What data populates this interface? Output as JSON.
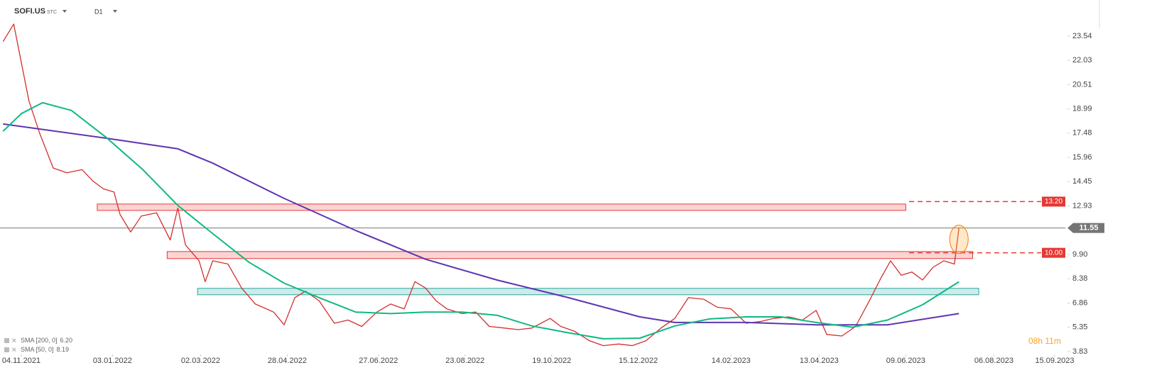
{
  "header": {
    "symbol": "SOFI.US",
    "market": "STC",
    "interval": "D1"
  },
  "chart_data": {
    "type": "line",
    "xlim": [
      "21.10.2021",
      "22.09.2023"
    ],
    "ylim": [
      3.65,
      25.8
    ],
    "xticks": [
      "04.11.2021",
      "03.01.2022",
      "02.03.2022",
      "28.04.2022",
      "27.06.2022",
      "23.08.2022",
      "19.10.2022",
      "15.12.2022",
      "14.02.2023",
      "13.04.2023",
      "09.06.2023",
      "06.08.2023",
      "15.09.2023"
    ],
    "yticks": [
      3.83,
      5.35,
      6.86,
      8.38,
      {
        "value": 9.9,
        "label": "9.90"
      },
      12.93,
      14.45,
      15.96,
      17.48,
      18.99,
      20.51,
      22.03,
      23.54
    ],
    "series": [
      {
        "color": "#d32f2f",
        "x": [
          "23.10.2021",
          "30.10.2021",
          "09.11.2021",
          "16.11.2021",
          "25.11.2021",
          "04.12.2021",
          "14.12.2021",
          "21.12.2021",
          "28.12.2021",
          "04.01.2022",
          "08.01.2022",
          "15.01.2022",
          "22.01.2022",
          "01.02.2022",
          "10.02.2022",
          "15.02.2022",
          "20.02.2022",
          "01.03.2022",
          "05.03.2022",
          "10.03.2022",
          "20.03.2022",
          "29.03.2022",
          "07.04.2022",
          "19.04.2022",
          "26.04.2022",
          "03.05.2022",
          "10.05.2022",
          "19.05.2022",
          "29.05.2022",
          "07.06.2022",
          "16.06.2022",
          "26.06.2022",
          "05.07.2022",
          "14.07.2022",
          "21.07.2022",
          "28.07.2022",
          "04.08.2022",
          "11.08.2022",
          "21.08.2022",
          "30.08.2022",
          "08.09.2022",
          "18.09.2022",
          "27.09.2022",
          "06.10.2022",
          "18.10.2022",
          "25.10.2022",
          "03.11.2022",
          "13.11.2022",
          "22.11.2022",
          "02.12.2022",
          "11.12.2022",
          "20.12.2022",
          "30.12.2022",
          "08.01.2023",
          "17.01.2023",
          "27.01.2023",
          "05.02.2023",
          "14.02.2023",
          "24.02.2023",
          "05.03.2023",
          "14.03.2023",
          "24.03.2023",
          "02.04.2023",
          "11.04.2023",
          "18.04.2023",
          "28.04.2023",
          "07.05.2023",
          "16.05.2023",
          "23.05.2023",
          "30.05.2023",
          "06.06.2023",
          "13.06.2023",
          "20.06.2023",
          "27.06.2023",
          "04.07.2023",
          "11.07.2023",
          "14.07.2023"
        ],
        "values": [
          23.2,
          24.3,
          19.5,
          17.5,
          15.3,
          15.0,
          15.2,
          14.5,
          14.0,
          13.8,
          12.4,
          11.3,
          12.3,
          12.5,
          10.8,
          12.8,
          10.5,
          9.5,
          8.2,
          9.5,
          9.3,
          7.8,
          6.8,
          6.3,
          5.5,
          7.2,
          7.6,
          7.0,
          5.6,
          5.8,
          5.4,
          6.3,
          6.8,
          6.5,
          8.2,
          7.8,
          7.0,
          6.5,
          6.2,
          6.3,
          5.4,
          5.3,
          5.2,
          5.3,
          5.9,
          5.4,
          5.1,
          4.5,
          4.2,
          4.3,
          4.2,
          4.5,
          5.3,
          5.9,
          7.2,
          7.1,
          6.6,
          6.5,
          5.6,
          5.7,
          5.9,
          6.0,
          5.8,
          6.4,
          4.9,
          4.8,
          5.4,
          7.0,
          8.3,
          9.5,
          8.6,
          8.8,
          8.3,
          9.1,
          9.5,
          9.3,
          11.55
        ]
      },
      {
        "name": "SMA [200, 0]",
        "legend_value": "6.20",
        "color": "#5e35b1",
        "x": [
          "23.10.2021",
          "30.12.2021",
          "15.02.2022",
          "10.03.2022",
          "26.04.2022",
          "12.06.2022",
          "28.07.2022",
          "13.09.2022",
          "30.10.2022",
          "16.12.2022",
          "08.01.2023",
          "24.02.2023",
          "11.04.2023",
          "28.05.2023",
          "14.07.2023"
        ],
        "values": [
          18.05,
          17.16,
          16.5,
          15.6,
          13.4,
          11.4,
          9.6,
          8.3,
          7.2,
          6.0,
          5.65,
          5.65,
          5.5,
          5.5,
          6.2
        ]
      },
      {
        "name": "SMA [50, 0]",
        "legend_value": "8.19",
        "color": "#10b981",
        "x": [
          "23.10.2021",
          "04.11.2021",
          "18.11.2021",
          "07.12.2021",
          "30.12.2021",
          "23.01.2022",
          "15.02.2022",
          "10.03.2022",
          "03.04.2022",
          "26.04.2022",
          "19.05.2022",
          "12.06.2022",
          "05.07.2022",
          "28.07.2022",
          "21.08.2022",
          "13.09.2022",
          "06.10.2022",
          "30.10.2022",
          "22.11.2022",
          "16.12.2022",
          "08.01.2023",
          "31.01.2023",
          "24.02.2023",
          "19.03.2023",
          "11.04.2023",
          "05.05.2023",
          "28.05.2023",
          "20.06.2023",
          "14.07.2023"
        ],
        "values": [
          17.6,
          18.7,
          19.38,
          18.9,
          17.2,
          15.2,
          12.96,
          11.2,
          9.4,
          8.1,
          7.2,
          6.3,
          6.2,
          6.3,
          6.3,
          6.1,
          5.43,
          5.0,
          4.63,
          4.67,
          5.43,
          5.87,
          6.0,
          6.0,
          5.65,
          5.35,
          5.8,
          6.75,
          8.19
        ]
      }
    ],
    "zones": [
      {
        "color": "#e53935",
        "x": [
          "24.12.2021",
          "09.06.2023"
        ],
        "y": [
          12.65,
          13.05
        ]
      },
      {
        "color": "#e53935",
        "x": [
          "08.02.2022",
          "23.07.2023"
        ],
        "y": [
          9.64,
          10.08
        ]
      },
      {
        "color": "#26a69a",
        "x": [
          "28.02.2022",
          "27.07.2023"
        ],
        "y": [
          7.38,
          7.78
        ]
      }
    ],
    "levels": [
      {
        "value": 13.2,
        "label": "13.20",
        "color": "#e53935"
      },
      {
        "value": 10,
        "label": "10.00",
        "color": "#e53935"
      }
    ],
    "current_price": {
      "value": 11.55,
      "label": "11.55",
      "color": "#757575"
    },
    "countdown": "08h 11m"
  }
}
